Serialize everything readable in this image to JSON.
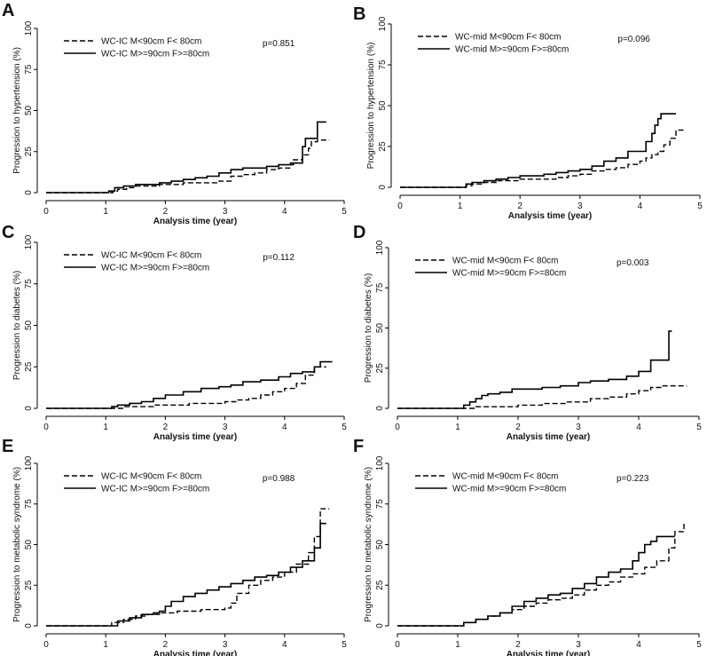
{
  "chart_data": [
    {
      "panel": "A",
      "type": "line",
      "xlabel": "Analysis time (year)",
      "ylabel": "Progression to hypertension (%)",
      "xlim": [
        0,
        5
      ],
      "ylim": [
        0,
        100
      ],
      "xticks": [
        "0",
        "1",
        "2",
        "3",
        "4",
        "5"
      ],
      "yticks": [
        "0",
        "25",
        "50",
        "75",
        "100"
      ],
      "legend_placement": "top-left",
      "pvalue": "p=0.851",
      "series": [
        {
          "name": "WC-IC M<90cm F< 80cm",
          "dash": "dashed",
          "x": [
            0,
            1.05,
            1.12,
            1.2,
            1.35,
            1.5,
            1.7,
            1.9,
            2.1,
            2.3,
            2.5,
            2.7,
            2.9,
            3.1,
            3.3,
            3.5,
            3.7,
            3.9,
            4.1,
            4.15,
            4.3,
            4.4,
            4.45,
            4.55,
            4.75
          ],
          "y": [
            0,
            0,
            1,
            2,
            3,
            4,
            4,
            5,
            5,
            6,
            6,
            6,
            7,
            10,
            11,
            12,
            14,
            15,
            17,
            20,
            23,
            27,
            31,
            32,
            32
          ]
        },
        {
          "name": "WC-IC M>=90cm F>=80cm",
          "dash": "solid",
          "x": [
            0,
            1.0,
            1.05,
            1.15,
            1.3,
            1.5,
            1.7,
            1.9,
            2.1,
            2.3,
            2.5,
            2.7,
            2.9,
            3.1,
            3.3,
            3.5,
            3.7,
            3.9,
            4.1,
            4.2,
            4.3,
            4.35,
            4.5,
            4.55,
            4.7
          ],
          "y": [
            0,
            0,
            1,
            3,
            4,
            5,
            5,
            6,
            7,
            8,
            9,
            10,
            12,
            14,
            15,
            15,
            16,
            17,
            18,
            18,
            28,
            33,
            33,
            43,
            43
          ]
        }
      ]
    },
    {
      "panel": "B",
      "type": "line",
      "xlabel": "Analysis time (year)",
      "ylabel": "Progression to hypertension (%)",
      "xlim": [
        0,
        5
      ],
      "ylim": [
        0,
        100
      ],
      "xticks": [
        "0",
        "1",
        "2",
        "3",
        "4",
        "5"
      ],
      "yticks": [
        "0",
        "25",
        "50",
        "75",
        "100"
      ],
      "legend_placement": "top-left",
      "pvalue": "p=0.096",
      "series": [
        {
          "name": "WC-mid M<90cm F< 80cm",
          "dash": "dashed",
          "x": [
            0,
            1.0,
            1.1,
            1.2,
            1.4,
            1.6,
            1.8,
            2.0,
            2.2,
            2.4,
            2.6,
            2.8,
            3.0,
            3.2,
            3.4,
            3.6,
            3.8,
            4.0,
            4.1,
            4.2,
            4.3,
            4.4,
            4.5,
            4.6,
            4.75
          ],
          "y": [
            0,
            0,
            1,
            2,
            3,
            4,
            4,
            5,
            5,
            5,
            6,
            7,
            8,
            10,
            11,
            12,
            14,
            16,
            18,
            20,
            22,
            26,
            30,
            35,
            35
          ]
        },
        {
          "name": "WC-mid M>=90cm F>=80cm",
          "dash": "solid",
          "x": [
            0,
            1.0,
            1.1,
            1.2,
            1.4,
            1.6,
            1.8,
            2.0,
            2.2,
            2.4,
            2.6,
            2.8,
            3.0,
            3.2,
            3.4,
            3.6,
            3.8,
            4.0,
            4.1,
            4.2,
            4.25,
            4.3,
            4.35,
            4.6
          ],
          "y": [
            0,
            0,
            2,
            3,
            4,
            5,
            6,
            7,
            7,
            8,
            9,
            10,
            11,
            13,
            16,
            18,
            22,
            22,
            28,
            33,
            38,
            42,
            45,
            45
          ]
        }
      ]
    },
    {
      "panel": "C",
      "type": "line",
      "xlabel": "Analysis time (year)",
      "ylabel": "Progression to diabetes (%)",
      "xlim": [
        0,
        5
      ],
      "ylim": [
        0,
        100
      ],
      "xticks": [
        "0",
        "1",
        "2",
        "3",
        "4",
        "5"
      ],
      "yticks": [
        "0",
        "25",
        "50",
        "75",
        "100"
      ],
      "legend_placement": "top-left",
      "pvalue": "p=0.112",
      "series": [
        {
          "name": "WC-IC M<90cm F< 80cm",
          "dash": "dashed",
          "x": [
            0,
            1.1,
            1.3,
            1.5,
            1.8,
            2.1,
            2.4,
            2.7,
            3.0,
            3.2,
            3.4,
            3.6,
            3.8,
            4.0,
            4.2,
            4.35,
            4.5,
            4.7
          ],
          "y": [
            0,
            0,
            1,
            1,
            2,
            2,
            3,
            3,
            4,
            5,
            6,
            8,
            10,
            12,
            15,
            20,
            25,
            25
          ]
        },
        {
          "name": "WC-IC M>=90cm F>=80cm",
          "dash": "solid",
          "x": [
            0,
            1.0,
            1.1,
            1.2,
            1.4,
            1.6,
            1.8,
            2.0,
            2.3,
            2.6,
            2.9,
            3.1,
            3.3,
            3.6,
            3.9,
            4.1,
            4.3,
            4.5,
            4.6,
            4.8
          ],
          "y": [
            0,
            0,
            1,
            2,
            3,
            4,
            6,
            8,
            10,
            12,
            13,
            14,
            16,
            17,
            19,
            21,
            22,
            25,
            28,
            28
          ]
        }
      ]
    },
    {
      "panel": "D",
      "type": "line",
      "xlabel": "Analysis time (year)",
      "ylabel": "Progression to diabetes (%)",
      "xlim": [
        0,
        5
      ],
      "ylim": [
        0,
        100
      ],
      "xticks": [
        "0",
        "1",
        "2",
        "3",
        "4",
        "5"
      ],
      "yticks": [
        "0",
        "25",
        "50",
        "75",
        "100"
      ],
      "legend_placement": "top-left",
      "pvalue": "p=0.003",
      "series": [
        {
          "name": "WC-mid M<90cm F< 80cm",
          "dash": "dashed",
          "x": [
            0,
            1.1,
            1.3,
            1.6,
            2.0,
            2.4,
            2.8,
            3.2,
            3.5,
            3.8,
            4.0,
            4.2,
            4.4,
            4.8
          ],
          "y": [
            0,
            0,
            1,
            1,
            2,
            3,
            4,
            6,
            7,
            9,
            11,
            13,
            14,
            14
          ]
        },
        {
          "name": "WC-mid M>=90cm F>=80cm",
          "dash": "solid",
          "x": [
            0,
            1.0,
            1.1,
            1.2,
            1.3,
            1.4,
            1.5,
            1.7,
            1.9,
            2.1,
            2.4,
            2.7,
            3.0,
            3.2,
            3.5,
            3.8,
            4.0,
            4.2,
            4.5,
            4.55
          ],
          "y": [
            0,
            0,
            2,
            4,
            6,
            8,
            9,
            10,
            12,
            12,
            13,
            14,
            16,
            17,
            18,
            20,
            23,
            30,
            48,
            48
          ]
        }
      ]
    },
    {
      "panel": "E",
      "type": "line",
      "xlabel": "Analysis time (year)",
      "ylabel": "Progression to metabolic syndrome (%)",
      "xlim": [
        0,
        5
      ],
      "ylim": [
        0,
        100
      ],
      "xticks": [
        "0",
        "1",
        "2",
        "3",
        "4",
        "5"
      ],
      "yticks": [
        "0",
        "25",
        "50",
        "75",
        "100"
      ],
      "legend_placement": "top-left",
      "pvalue": "p=0.988",
      "series": [
        {
          "name": "WC-IC M<90cm F< 80cm",
          "dash": "dashed",
          "x": [
            0,
            1.0,
            1.1,
            1.3,
            1.5,
            1.7,
            1.9,
            2.0,
            2.2,
            2.4,
            2.6,
            2.8,
            3.0,
            3.1,
            3.2,
            3.4,
            3.6,
            3.8,
            4.0,
            4.2,
            4.4,
            4.5,
            4.6,
            4.75
          ],
          "y": [
            0,
            0,
            2,
            4,
            6,
            7,
            8,
            8,
            9,
            9,
            10,
            10,
            11,
            14,
            20,
            25,
            28,
            30,
            33,
            38,
            45,
            55,
            72,
            72
          ]
        },
        {
          "name": "WC-IC M>=90cm F>=80cm",
          "dash": "solid",
          "x": [
            0,
            1.0,
            1.2,
            1.4,
            1.6,
            1.8,
            1.9,
            2.0,
            2.1,
            2.3,
            2.5,
            2.7,
            2.9,
            3.1,
            3.3,
            3.5,
            3.7,
            3.9,
            4.1,
            4.3,
            4.5,
            4.6,
            4.7
          ],
          "y": [
            0,
            0,
            3,
            5,
            7,
            8,
            9,
            12,
            15,
            18,
            20,
            22,
            24,
            26,
            28,
            30,
            31,
            33,
            36,
            40,
            48,
            63,
            63
          ]
        }
      ]
    },
    {
      "panel": "F",
      "type": "line",
      "xlabel": "Analysis time (year)",
      "ylabel": "Progression to metabolic syndrome (%)",
      "xlim": [
        0,
        5
      ],
      "ylim": [
        0,
        100
      ],
      "xticks": [
        "0",
        "1",
        "2",
        "3",
        "4",
        "5"
      ],
      "yticks": [
        "0",
        "25",
        "50",
        "75",
        "100"
      ],
      "legend_placement": "top-left",
      "pvalue": "p=0.223",
      "series": [
        {
          "name": "WC-mid M<90cm F< 80cm",
          "dash": "dashed",
          "x": [
            0,
            1.0,
            1.1,
            1.3,
            1.5,
            1.7,
            1.9,
            2.1,
            2.3,
            2.5,
            2.7,
            2.9,
            3.1,
            3.3,
            3.5,
            3.7,
            3.9,
            4.1,
            4.3,
            4.5,
            4.6,
            4.75
          ],
          "y": [
            0,
            0,
            2,
            4,
            6,
            8,
            10,
            12,
            14,
            16,
            17,
            19,
            22,
            25,
            27,
            30,
            32,
            36,
            40,
            48,
            58,
            64
          ]
        },
        {
          "name": "WC-mid M>=90cm F>=80cm",
          "dash": "solid",
          "x": [
            0,
            1.0,
            1.1,
            1.3,
            1.5,
            1.7,
            1.9,
            2.1,
            2.3,
            2.5,
            2.7,
            2.9,
            3.1,
            3.3,
            3.5,
            3.7,
            3.9,
            4.0,
            4.1,
            4.2,
            4.3,
            4.6
          ],
          "y": [
            0,
            0,
            2,
            4,
            6,
            8,
            12,
            15,
            17,
            19,
            20,
            23,
            26,
            30,
            33,
            35,
            40,
            45,
            50,
            52,
            55,
            55
          ]
        }
      ]
    }
  ]
}
